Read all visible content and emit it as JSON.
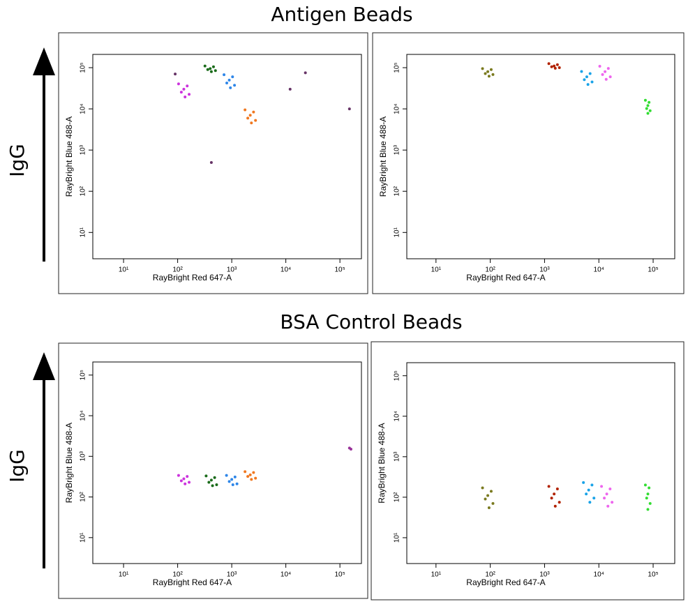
{
  "section_titles": [
    "Antigen Beads",
    "BSA Control Beads"
  ],
  "side_labels": [
    "IgG",
    "IgG"
  ],
  "chart_data": [
    {
      "type": "scatter",
      "xlabel": "RayBright Red 647-A",
      "ylabel": "RayBright Blue 488-A",
      "log_scale": true,
      "grid": false,
      "xlim": [
        2.7,
        250000
      ],
      "ylim": [
        2.3,
        210000
      ],
      "xticks": [
        {
          "value": 10,
          "label": "10¹"
        },
        {
          "value": 100,
          "label": "10²"
        },
        {
          "value": 1000,
          "label": "10³"
        },
        {
          "value": 10000,
          "label": "10⁴"
        },
        {
          "value": 100000,
          "label": "10⁵"
        }
      ],
      "yticks": [
        {
          "value": 10,
          "label": "10¹"
        },
        {
          "value": 100,
          "label": "10²"
        },
        {
          "value": 1000,
          "label": "10³"
        },
        {
          "value": 10000,
          "label": "10⁴"
        },
        {
          "value": 100000,
          "label": "10⁵"
        }
      ],
      "series": [
        {
          "color": "#cc33dd",
          "x": [
            130,
            104,
            163,
            117,
            150,
            137
          ],
          "y": [
            30000,
            40500,
            22500,
            25500,
            36000,
            19500
          ]
        },
        {
          "color": "#1a6b1a",
          "x": [
            400,
            320,
            500,
            360,
            460,
            420
          ],
          "y": [
            95000,
            110000,
            85000,
            90000,
            105000,
            80000
          ]
        },
        {
          "color": "#2e86e8",
          "x": [
            900,
            720,
            1125,
            810,
            1035,
            945
          ],
          "y": [
            50000,
            67500,
            37500,
            42500,
            60000,
            32500
          ]
        },
        {
          "color": "#f07820",
          "x": [
            2200,
            1760,
            2750,
            1980,
            2530,
            2310
          ],
          "y": [
            7000,
            9450,
            5250,
            5950,
            8400,
            4550
          ]
        },
        {
          "color": "#663366",
          "x": [
            90,
            23000,
            12000,
            150000,
            420
          ],
          "y": [
            70000,
            75000,
            30000,
            10000,
            500
          ]
        }
      ]
    },
    {
      "type": "scatter",
      "xlabel": "RayBright Red 647-A",
      "ylabel": "RayBright Blue 488-A",
      "log_scale": true,
      "grid": false,
      "xlim": [
        2.9,
        250000
      ],
      "ylim": [
        2.3,
        210000
      ],
      "xticks": [
        {
          "value": 10,
          "label": "10¹"
        },
        {
          "value": 100,
          "label": "10²"
        },
        {
          "value": 1000,
          "label": "10³"
        },
        {
          "value": 10000,
          "label": "10⁴"
        },
        {
          "value": 100000,
          "label": "10⁵"
        }
      ],
      "yticks": [
        {
          "value": 10,
          "label": "10¹"
        },
        {
          "value": 100,
          "label": "10²"
        },
        {
          "value": 1000,
          "label": "10³"
        },
        {
          "value": 10000,
          "label": "10⁴"
        },
        {
          "value": 100000,
          "label": "10⁵"
        }
      ],
      "series": [
        {
          "color": "#7a7a1f",
          "x": [
            90,
            72,
            112,
            81,
            104,
            95
          ],
          "y": [
            80000,
            95000,
            68000,
            72000,
            90000,
            62000
          ]
        },
        {
          "color": "#b22200",
          "x": [
            1500,
            1200,
            1875,
            1350,
            1725,
            1575
          ],
          "y": [
            110000,
            125000,
            100000,
            105000,
            118000,
            97000
          ]
        },
        {
          "color": "#1aa3e8",
          "x": [
            6000,
            4800,
            7500,
            5400,
            6900,
            6300
          ],
          "y": [
            60000,
            81000,
            45000,
            51000,
            72000,
            39000
          ]
        },
        {
          "color": "#ee66ee",
          "x": [
            13000,
            10400,
            16250,
            11700,
            14950,
            13650
          ],
          "y": [
            80000,
            108000,
            60000,
            68000,
            96000,
            52000
          ]
        },
        {
          "color": "#33dd33",
          "x": [
            80000,
            72000,
            88000,
            76000,
            84000,
            80000
          ],
          "y": [
            12000,
            16200,
            9000,
            10200,
            14400,
            7800
          ]
        }
      ]
    },
    {
      "type": "scatter",
      "xlabel": "RayBright Red 647-A",
      "ylabel": "RayBright Blue 488-A",
      "log_scale": true,
      "grid": false,
      "xlim": [
        2.7,
        250000
      ],
      "ylim": [
        2.3,
        210000
      ],
      "xticks": [
        {
          "value": 10,
          "label": "10¹"
        },
        {
          "value": 100,
          "label": "10²"
        },
        {
          "value": 1000,
          "label": "10³"
        },
        {
          "value": 10000,
          "label": "10⁴"
        },
        {
          "value": 100000,
          "label": "10⁵"
        }
      ],
      "yticks": [
        {
          "value": 10,
          "label": "10¹"
        },
        {
          "value": 100,
          "label": "10²"
        },
        {
          "value": 1000,
          "label": "10³"
        },
        {
          "value": 10000,
          "label": "10⁴"
        },
        {
          "value": 100000,
          "label": "10⁵"
        }
      ],
      "series": [
        {
          "color": "#cc33dd",
          "x": [
            130,
            104,
            163,
            117,
            150,
            137
          ],
          "y": [
            280,
            340,
            230,
            250,
            320,
            210
          ]
        },
        {
          "color": "#1a6b1a",
          "x": [
            420,
            336,
            525,
            378,
            483,
            441
          ],
          "y": [
            260,
            330,
            200,
            230,
            300,
            190
          ]
        },
        {
          "color": "#2e86e8",
          "x": [
            1000,
            800,
            1250,
            900,
            1150,
            1050
          ],
          "y": [
            270,
            340,
            210,
            240,
            310,
            200
          ]
        },
        {
          "color": "#f07820",
          "x": [
            2200,
            1760,
            2750,
            1980,
            2530,
            2310
          ],
          "y": [
            350,
            420,
            290,
            320,
            400,
            270
          ]
        },
        {
          "color": "#993399",
          "x": [
            150000,
            160000
          ],
          "y": [
            1600,
            1500
          ]
        }
      ]
    },
    {
      "type": "scatter",
      "xlabel": "RayBright Red 647-A",
      "ylabel": "RayBright Blue 488-A",
      "log_scale": true,
      "grid": false,
      "xlim": [
        2.9,
        250000
      ],
      "ylim": [
        2.3,
        210000
      ],
      "xticks": [
        {
          "value": 10,
          "label": "10¹"
        },
        {
          "value": 100,
          "label": "10²"
        },
        {
          "value": 1000,
          "label": "10³"
        },
        {
          "value": 10000,
          "label": "10⁴"
        },
        {
          "value": 100000,
          "label": "10⁵"
        }
      ],
      "yticks": [
        {
          "value": 10,
          "label": "10¹"
        },
        {
          "value": 100,
          "label": "10²"
        },
        {
          "value": 1000,
          "label": "10³"
        },
        {
          "value": 10000,
          "label": "10⁴"
        },
        {
          "value": 100000,
          "label": "10⁵"
        }
      ],
      "series": [
        {
          "color": "#7a7a1f",
          "x": [
            90,
            72,
            112,
            81,
            104,
            95
          ],
          "y": [
            110,
            170,
            70,
            90,
            140,
            55
          ]
        },
        {
          "color": "#b22200",
          "x": [
            1500,
            1200,
            1875,
            1350,
            1725,
            1575
          ],
          "y": [
            120,
            185,
            75,
            95,
            160,
            60
          ]
        },
        {
          "color": "#1aa3e8",
          "x": [
            6500,
            5200,
            8125,
            5850,
            7475,
            6825
          ],
          "y": [
            150,
            230,
            95,
            120,
            200,
            75
          ]
        },
        {
          "color": "#ee66ee",
          "x": [
            14000,
            11200,
            17500,
            12600,
            16100,
            14700
          ],
          "y": [
            120,
            185,
            75,
            95,
            160,
            60
          ]
        },
        {
          "color": "#33dd33",
          "x": [
            80000,
            72000,
            88000,
            76000,
            84000,
            80000
          ],
          "y": [
            120,
            200,
            70,
            95,
            170,
            50
          ]
        }
      ]
    }
  ]
}
